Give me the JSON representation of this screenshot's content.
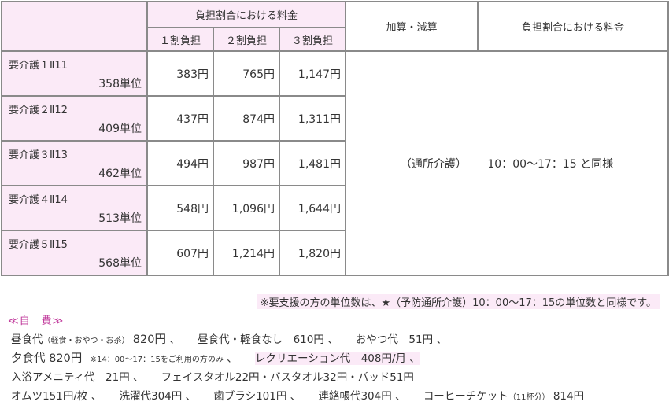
{
  "table": {
    "header": {
      "burden_group": "負担割合における料金",
      "burden_cols": [
        "１割負担",
        "２割負担",
        "３割負担"
      ],
      "add_sub": "加算・減算",
      "right_group": "負担割合における料金"
    },
    "rows": [
      {
        "level": "要介護１Ⅱ11",
        "units": "358単位",
        "r1": "383円",
        "r2": "765円",
        "r3": "1,147円"
      },
      {
        "level": "要介護２Ⅱ12",
        "units": "409単位",
        "r1": "437円",
        "r2": "874円",
        "r3": "1,311円"
      },
      {
        "level": "要介護３Ⅱ13",
        "units": "462単位",
        "r1": "494円",
        "r2": "987円",
        "r3": "1,481円"
      },
      {
        "level": "要介護４Ⅱ14",
        "units": "513単位",
        "r1": "548円",
        "r2": "1,096円",
        "r3": "1,644円"
      },
      {
        "level": "要介護５Ⅱ15",
        "units": "568単位",
        "r1": "607円",
        "r2": "1,214円",
        "r3": "1,820円"
      }
    ],
    "merged_note_prefix": "（通所介護）",
    "merged_note": "10：00～17：15 と同様"
  },
  "notes": {
    "star_note": "※要支援の方の単位数は、★（予防通所介護）10：00～17：15の単位数と同様です。",
    "self_pay_title": "≪自　費≫",
    "meal": {
      "label": "昼食代",
      "detail": "（軽食・おやつ・お茶）",
      "price": "820円",
      "tail": "、"
    },
    "meal_light": "昼食代・軽食なし　610円 、",
    "snack": "おやつ代　51円 、",
    "dinner": {
      "label": "夕食代 820円",
      "detail": "※14：00～17：15をご利用の方のみ",
      "tail": "、"
    },
    "recreation": "レクリエーション代　408円/月 、",
    "bath_amenity": "入浴アメニティ代　21円 、",
    "towels": "フェイスタオル22円・バスタオル32円・パッド51円",
    "diaper": "オムツ151円/枚 、",
    "laundry": "洗濯代304円 、",
    "toothbrush": "歯ブラシ101円 、",
    "notebook": "連絡帳代304円 、",
    "coffee": {
      "label": "コーヒーチケット",
      "detail": "（11杯分）",
      "price": "814円"
    }
  }
}
